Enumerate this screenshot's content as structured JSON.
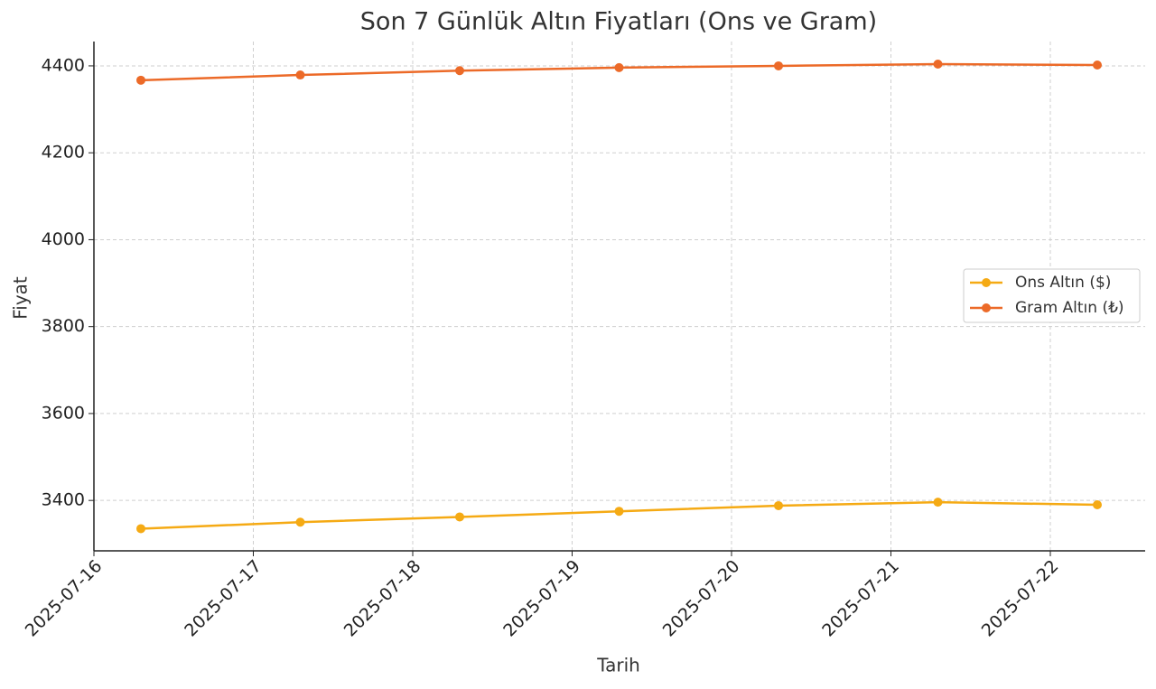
{
  "chart_data": {
    "type": "line",
    "title": "Son 7 Günlük Altın Fiyatları (Ons ve Gram)",
    "x_label": "Tarih",
    "y_label": "Fiyat",
    "x": [
      "2025-07-16",
      "2025-07-17",
      "2025-07-18",
      "2025-07-19",
      "2025-07-20",
      "2025-07-21",
      "2025-07-22"
    ],
    "series": [
      {
        "name": "Ons Altın ($)",
        "color": "#f5aa14",
        "values": [
          3335,
          3350,
          3362,
          3375,
          3388,
          3396,
          3390
        ]
      },
      {
        "name": "Gram Altın (₺)",
        "color": "#ec6a28",
        "values": [
          4367,
          4379,
          4389,
          4396,
          4400,
          4404,
          4402
        ]
      }
    ],
    "xticks": [
      "2025-07-16",
      "2025-07-17",
      "2025-07-18",
      "2025-07-19",
      "2025-07-20",
      "2025-07-21",
      "2025-07-22"
    ],
    "ylim": [
      3284,
      4456
    ],
    "yticks": [
      3400,
      3600,
      3800,
      4000,
      4200,
      4400
    ],
    "grid": true,
    "legend": "center right"
  }
}
